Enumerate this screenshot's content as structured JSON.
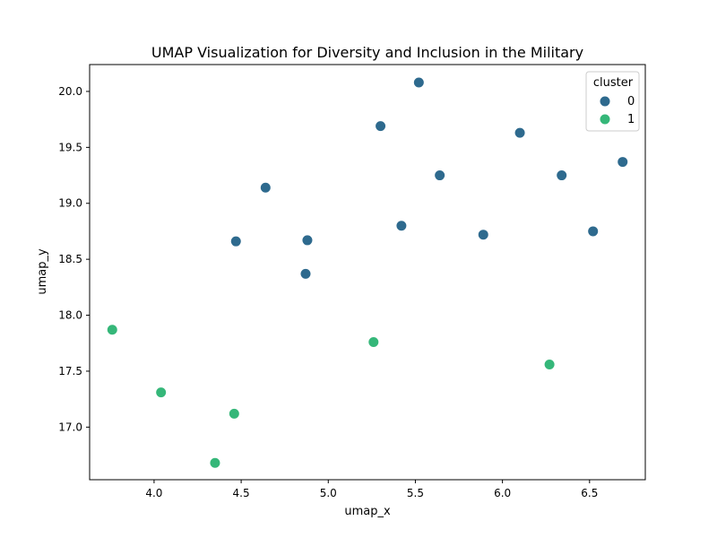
{
  "chart_data": {
    "type": "scatter",
    "title": "UMAP Visualization for Diversity and Inclusion in the Military",
    "xlabel": "umap_x",
    "ylabel": "umap_y",
    "xlim": [
      3.63,
      6.82
    ],
    "ylim": [
      16.53,
      20.24
    ],
    "xticks": [
      4.0,
      4.5,
      5.0,
      5.5,
      6.0,
      6.5
    ],
    "yticks": [
      17.0,
      17.5,
      18.0,
      18.5,
      19.0,
      19.5,
      20.0
    ],
    "xtick_labels": [
      "4.0",
      "4.5",
      "5.0",
      "5.5",
      "6.0",
      "6.5"
    ],
    "ytick_labels": [
      "17.0",
      "17.5",
      "18.0",
      "18.5",
      "19.0",
      "19.5",
      "20.0"
    ],
    "grid": false,
    "legend": {
      "title": "cluster",
      "position": "top-right",
      "entries": [
        {
          "label": "0",
          "color": "#2e6a8e"
        },
        {
          "label": "1",
          "color": "#35b779"
        }
      ]
    },
    "series": [
      {
        "name": "0",
        "color": "#2e6a8e",
        "points": [
          {
            "x": 5.52,
            "y": 20.08
          },
          {
            "x": 5.3,
            "y": 19.69
          },
          {
            "x": 6.1,
            "y": 19.63
          },
          {
            "x": 6.69,
            "y": 19.37
          },
          {
            "x": 5.64,
            "y": 19.25
          },
          {
            "x": 6.34,
            "y": 19.25
          },
          {
            "x": 4.64,
            "y": 19.14
          },
          {
            "x": 5.42,
            "y": 18.8
          },
          {
            "x": 6.52,
            "y": 18.75
          },
          {
            "x": 5.89,
            "y": 18.72
          },
          {
            "x": 4.88,
            "y": 18.67
          },
          {
            "x": 4.47,
            "y": 18.66
          },
          {
            "x": 4.87,
            "y": 18.37
          }
        ]
      },
      {
        "name": "1",
        "color": "#35b779",
        "points": [
          {
            "x": 3.76,
            "y": 17.87
          },
          {
            "x": 5.26,
            "y": 17.76
          },
          {
            "x": 6.27,
            "y": 17.56
          },
          {
            "x": 4.04,
            "y": 17.31
          },
          {
            "x": 4.46,
            "y": 17.12
          },
          {
            "x": 4.35,
            "y": 16.68
          }
        ]
      }
    ]
  }
}
